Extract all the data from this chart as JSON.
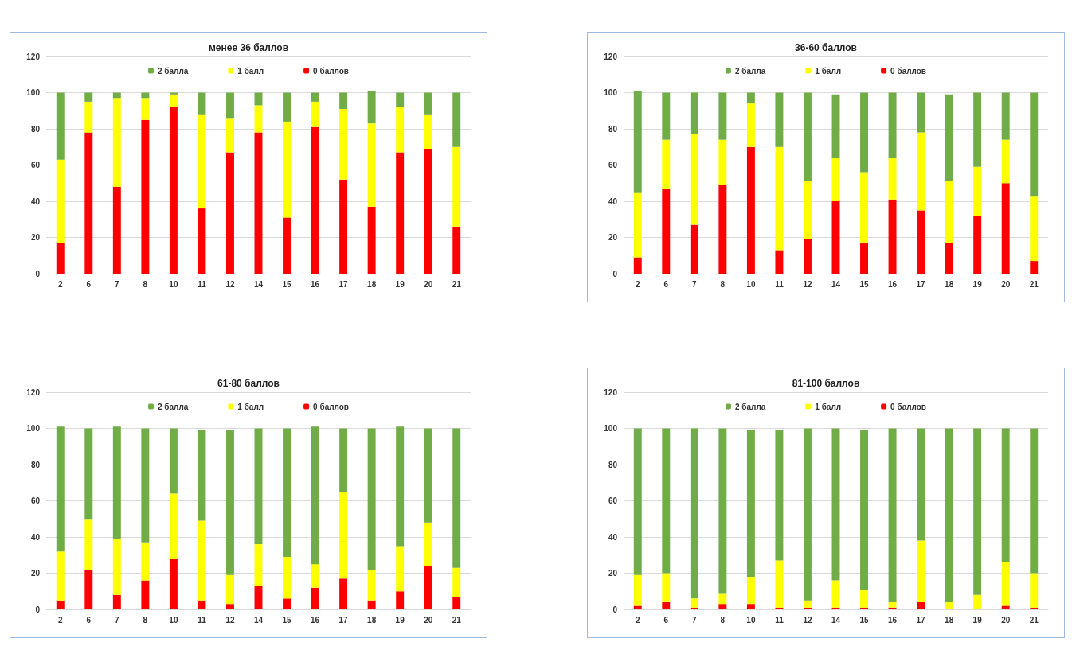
{
  "chart_data": [
    {
      "type": "bar",
      "title": "менее 36 баллов",
      "stacked": true,
      "grid": "y",
      "legend": "top",
      "ylim": [
        0,
        120
      ],
      "yticks": [
        0,
        20,
        40,
        60,
        80,
        100,
        120
      ],
      "categories": [
        "2",
        "6",
        "7",
        "8",
        "10",
        "11",
        "12",
        "14",
        "15",
        "16",
        "17",
        "18",
        "19",
        "20",
        "21"
      ],
      "series": [
        {
          "name": "0 баллов",
          "color": "#ff0000",
          "values": [
            17,
            78,
            48,
            85,
            92,
            36,
            67,
            78,
            31,
            81,
            52,
            37,
            67,
            69,
            26
          ]
        },
        {
          "name": "1 балл",
          "color": "#ffff00",
          "values": [
            46,
            17,
            49,
            12,
            7,
            52,
            19,
            15,
            53,
            14,
            39,
            46,
            25,
            19,
            44
          ]
        },
        {
          "name": "2 балла",
          "color": "#70ad47",
          "values": [
            37,
            5,
            3,
            3,
            1,
            12,
            14,
            7,
            16,
            5,
            9,
            18,
            8,
            12,
            30
          ]
        }
      ]
    },
    {
      "type": "bar",
      "title": "36-60 баллов",
      "stacked": true,
      "grid": "y",
      "legend": "top",
      "ylim": [
        0,
        120
      ],
      "yticks": [
        0,
        20,
        40,
        60,
        80,
        100,
        120
      ],
      "categories": [
        "2",
        "6",
        "7",
        "8",
        "10",
        "11",
        "12",
        "14",
        "15",
        "16",
        "17",
        "18",
        "19",
        "20",
        "21"
      ],
      "series": [
        {
          "name": "0 баллов",
          "color": "#ff0000",
          "values": [
            9,
            47,
            27,
            49,
            70,
            13,
            19,
            40,
            17,
            41,
            35,
            17,
            32,
            50,
            7
          ]
        },
        {
          "name": "1 балл",
          "color": "#ffff00",
          "values": [
            36,
            27,
            50,
            25,
            24,
            57,
            32,
            24,
            39,
            23,
            43,
            34,
            27,
            24,
            36
          ]
        },
        {
          "name": "2 балла",
          "color": "#70ad47",
          "values": [
            56,
            26,
            23,
            26,
            6,
            30,
            49,
            35,
            44,
            36,
            22,
            48,
            41,
            26,
            57
          ]
        }
      ]
    },
    {
      "type": "bar",
      "title": "61-80 баллов",
      "stacked": true,
      "grid": "y",
      "legend": "top",
      "ylim": [
        0,
        120
      ],
      "yticks": [
        0,
        20,
        40,
        60,
        80,
        100,
        120
      ],
      "categories": [
        "2",
        "6",
        "7",
        "8",
        "10",
        "11",
        "12",
        "14",
        "15",
        "16",
        "17",
        "18",
        "19",
        "20",
        "21"
      ],
      "series": [
        {
          "name": "0 баллов",
          "color": "#ff0000",
          "values": [
            5,
            22,
            8,
            16,
            28,
            5,
            3,
            13,
            6,
            12,
            17,
            5,
            10,
            24,
            7
          ]
        },
        {
          "name": "1 балл",
          "color": "#ffff00",
          "values": [
            27,
            28,
            31,
            21,
            36,
            44,
            16,
            23,
            23,
            13,
            48,
            17,
            25,
            24,
            16
          ]
        },
        {
          "name": "2 балла",
          "color": "#70ad47",
          "values": [
            69,
            50,
            62,
            63,
            36,
            50,
            80,
            64,
            71,
            76,
            35,
            78,
            66,
            52,
            77
          ]
        }
      ]
    },
    {
      "type": "bar",
      "title": "81-100 баллов",
      "stacked": true,
      "grid": "y",
      "legend": "top",
      "ylim": [
        0,
        120
      ],
      "yticks": [
        0,
        20,
        40,
        60,
        80,
        100,
        120
      ],
      "categories": [
        "2",
        "6",
        "7",
        "8",
        "10",
        "11",
        "12",
        "14",
        "15",
        "16",
        "17",
        "18",
        "19",
        "20",
        "21"
      ],
      "series": [
        {
          "name": "0 баллов",
          "color": "#ff0000",
          "values": [
            2,
            4,
            1,
            3,
            3,
            1,
            1,
            1,
            1,
            1,
            4,
            0,
            0,
            2,
            1
          ]
        },
        {
          "name": "1 балл",
          "color": "#ffff00",
          "values": [
            17,
            16,
            5,
            6,
            15,
            26,
            4,
            15,
            10,
            3,
            34,
            4,
            8,
            24,
            19
          ]
        },
        {
          "name": "2 балла",
          "color": "#70ad47",
          "values": [
            81,
            80,
            94,
            91,
            81,
            72,
            95,
            84,
            88,
            96,
            62,
            96,
            92,
            74,
            80
          ]
        }
      ]
    }
  ]
}
